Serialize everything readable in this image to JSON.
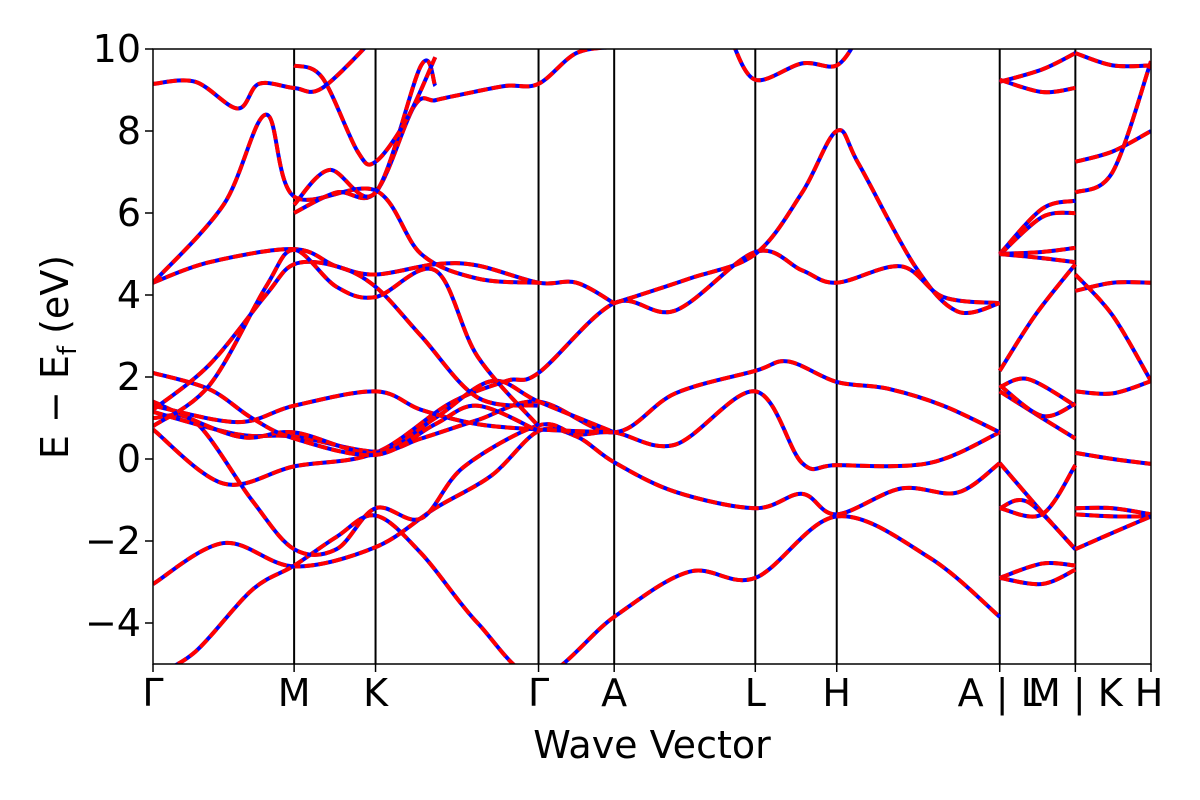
{
  "chart_data": {
    "type": "line",
    "xlabel": "Wave Vector",
    "ylabel": {
      "main": "E − E",
      "sub": "f",
      "unit": " (eV)"
    },
    "ylim": [
      -5,
      10
    ],
    "yticks": [
      -4,
      -2,
      0,
      2,
      4,
      6,
      8,
      10
    ],
    "ytick_labels": [
      "−4",
      "−2",
      "0",
      "2",
      "4",
      "6",
      "8",
      "10"
    ],
    "kpath": [
      {
        "label": "Γ",
        "k": 0.0
      },
      {
        "label": "M",
        "k": 1.0
      },
      {
        "label": "K",
        "k": 1.577
      },
      {
        "label": "Γ",
        "k": 2.732
      },
      {
        "label": "A",
        "k": 3.268
      },
      {
        "label": "L",
        "k": 4.268
      },
      {
        "label": "H",
        "k": 4.845
      },
      {
        "label": "A | L",
        "k": 6.0
      },
      {
        "label": "M | K",
        "k": 6.536
      },
      {
        "label": "H",
        "k": 7.072
      }
    ],
    "xlim": [
      0,
      7.072
    ],
    "grid": false,
    "legend": "none",
    "colors": {
      "spin_up": "#ff0000",
      "spin_down": "#0000ff",
      "kline": "#000000"
    },
    "series": [
      {
        "points": [
          [
            0,
            -3.05
          ],
          [
            0.5,
            -2.05
          ],
          [
            1.0,
            -2.62
          ],
          [
            1.577,
            -2.15
          ],
          [
            2.0,
            -1.2
          ],
          [
            2.4,
            -0.4
          ],
          [
            2.732,
            0.68
          ],
          [
            3.0,
            0.55
          ],
          [
            3.268,
            -0.08
          ],
          [
            3.7,
            -0.8
          ],
          [
            4.268,
            -1.2
          ],
          [
            4.6,
            -0.85
          ],
          [
            4.845,
            -1.35
          ],
          [
            5.3,
            -0.72
          ],
          [
            5.7,
            -0.82
          ],
          [
            6.0,
            -0.1
          ]
        ]
      },
      {
        "points": [
          [
            0,
            -5.3
          ],
          [
            0.3,
            -4.7
          ],
          [
            0.7,
            -3.2
          ],
          [
            1.0,
            -2.6
          ],
          [
            1.3,
            -1.9
          ],
          [
            1.577,
            -1.38
          ],
          [
            1.9,
            -2.3
          ],
          [
            2.3,
            -4.0
          ],
          [
            2.732,
            -5.3
          ],
          [
            3.268,
            -3.85
          ],
          [
            3.8,
            -2.75
          ],
          [
            4.268,
            -2.9
          ],
          [
            4.845,
            -1.4
          ],
          [
            5.5,
            -2.4
          ],
          [
            6.0,
            -3.85
          ]
        ]
      },
      {
        "points": [
          [
            0,
            0.72
          ],
          [
            0.5,
            -0.6
          ],
          [
            1.0,
            -0.18
          ],
          [
            1.577,
            0.15
          ],
          [
            2.1,
            1.35
          ],
          [
            2.5,
            1.9
          ],
          [
            2.732,
            2.1
          ],
          [
            3.268,
            3.8
          ],
          [
            3.7,
            3.62
          ],
          [
            4.268,
            5.05
          ],
          [
            4.6,
            4.6
          ],
          [
            4.845,
            4.3
          ],
          [
            5.3,
            4.7
          ],
          [
            5.6,
            3.95
          ],
          [
            6.0,
            3.8
          ]
        ]
      },
      {
        "points": [
          [
            0,
            1.0
          ],
          [
            0.3,
            0.9
          ],
          [
            0.7,
            -1.0
          ],
          [
            1.0,
            -2.2
          ],
          [
            1.3,
            -2.2
          ],
          [
            1.577,
            -1.2
          ],
          [
            1.9,
            -1.45
          ],
          [
            2.2,
            -0.2
          ],
          [
            2.732,
            0.82
          ],
          [
            3.0,
            0.6
          ],
          [
            3.268,
            0.65
          ],
          [
            3.7,
            0.35
          ],
          [
            4.268,
            1.65
          ],
          [
            4.6,
            -0.1
          ],
          [
            4.845,
            -0.15
          ],
          [
            5.5,
            -0.1
          ],
          [
            6.0,
            0.65
          ]
        ]
      },
      {
        "points": [
          [
            0,
            1.15
          ],
          [
            0.6,
            0.6
          ],
          [
            1.0,
            0.55
          ],
          [
            1.577,
            0.18
          ],
          [
            1.9,
            0.5
          ],
          [
            2.3,
            0.95
          ],
          [
            2.732,
            1.4
          ],
          [
            3.268,
            0.65
          ],
          [
            3.7,
            1.6
          ],
          [
            4.268,
            2.15
          ],
          [
            4.5,
            2.38
          ],
          [
            4.845,
            1.88
          ],
          [
            5.2,
            1.72
          ],
          [
            5.6,
            1.3
          ],
          [
            6.0,
            0.65
          ]
        ]
      },
      {
        "points": [
          [
            0,
            1.4
          ],
          [
            0.6,
            0.55
          ],
          [
            1.0,
            0.65
          ],
          [
            1.577,
            0.15
          ],
          [
            2.0,
            1.0
          ],
          [
            2.4,
            1.9
          ],
          [
            2.732,
            1.4
          ],
          [
            3.268,
            0.65
          ]
        ]
      },
      {
        "points": [
          [
            0,
            1.3
          ],
          [
            0.6,
            0.9
          ],
          [
            1.0,
            1.3
          ],
          [
            1.577,
            1.65
          ],
          [
            1.9,
            1.2
          ],
          [
            2.3,
            0.85
          ],
          [
            2.732,
            0.72
          ],
          [
            3.268,
            0.65
          ]
        ]
      },
      {
        "points": [
          [
            0,
            2.1
          ],
          [
            0.4,
            1.7
          ],
          [
            0.7,
            1.0
          ],
          [
            1.0,
            0.5
          ],
          [
            1.577,
            0.1
          ],
          [
            2.0,
            0.85
          ],
          [
            2.3,
            1.3
          ],
          [
            2.732,
            0.68
          ]
        ]
      },
      {
        "points": [
          [
            0,
            4.3
          ],
          [
            0.4,
            4.8
          ],
          [
            1.0,
            5.12
          ],
          [
            1.3,
            4.7
          ],
          [
            1.577,
            4.5
          ],
          [
            2.0,
            4.75
          ],
          [
            2.3,
            4.72
          ],
          [
            2.732,
            4.3
          ],
          [
            3.0,
            4.3
          ],
          [
            3.268,
            3.8
          ]
        ]
      },
      {
        "points": [
          [
            0,
            4.3
          ],
          [
            0.5,
            6.2
          ],
          [
            0.8,
            8.4
          ],
          [
            1.0,
            6.4
          ],
          [
            1.577,
            6.55
          ],
          [
            1.9,
            5.0
          ],
          [
            2.3,
            4.4
          ],
          [
            2.732,
            4.3
          ]
        ]
      },
      {
        "points": [
          [
            0,
            1.2
          ],
          [
            0.4,
            2.3
          ],
          [
            0.8,
            4.0
          ],
          [
            1.0,
            4.75
          ],
          [
            1.3,
            4.7
          ],
          [
            1.577,
            4.2
          ],
          [
            1.9,
            3.0
          ],
          [
            2.3,
            1.5
          ],
          [
            2.732,
            1.3
          ]
        ]
      },
      {
        "points": [
          [
            0,
            0.8
          ],
          [
            0.4,
            1.8
          ],
          [
            0.8,
            4.2
          ],
          [
            1.0,
            5.1
          ],
          [
            1.3,
            4.2
          ],
          [
            1.577,
            3.95
          ],
          [
            2.0,
            4.6
          ],
          [
            2.3,
            2.5
          ],
          [
            2.732,
            0.8
          ]
        ]
      },
      {
        "points": [
          [
            0,
            9.15
          ],
          [
            0.3,
            9.2
          ],
          [
            0.6,
            8.55
          ],
          [
            0.75,
            9.15
          ],
          [
            1.0,
            9.05
          ],
          [
            1.2,
            9.05
          ],
          [
            1.577,
            10.3
          ]
        ]
      },
      {
        "points": [
          [
            1.0,
            6.0
          ],
          [
            1.3,
            6.5
          ],
          [
            1.577,
            6.5
          ],
          [
            1.85,
            8.6
          ],
          [
            2.0,
            8.75
          ],
          [
            2.2,
            8.9
          ],
          [
            2.5,
            9.1
          ],
          [
            2.732,
            9.15
          ],
          [
            3.0,
            9.9
          ],
          [
            3.268,
            10.05
          ]
        ]
      },
      {
        "points": [
          [
            1.0,
            6.2
          ],
          [
            1.25,
            7.05
          ],
          [
            1.577,
            6.5
          ],
          [
            1.9,
            9.6
          ],
          [
            2.0,
            9.1
          ]
        ]
      },
      {
        "points": [
          [
            1.0,
            9.6
          ],
          [
            1.2,
            9.3
          ],
          [
            1.45,
            7.5
          ],
          [
            1.577,
            7.25
          ],
          [
            1.8,
            8.3
          ],
          [
            2.0,
            9.8
          ]
        ]
      },
      {
        "points": [
          [
            4.1,
            10.2
          ],
          [
            4.268,
            9.25
          ],
          [
            4.6,
            9.65
          ],
          [
            4.845,
            9.6
          ],
          [
            5.0,
            10.3
          ]
        ]
      },
      {
        "points": [
          [
            3.268,
            3.8
          ],
          [
            3.8,
            4.4
          ],
          [
            4.268,
            5.0
          ],
          [
            4.6,
            6.5
          ],
          [
            4.845,
            8.0
          ],
          [
            5.0,
            7.2
          ],
          [
            5.4,
            4.7
          ],
          [
            5.7,
            3.6
          ],
          [
            6.0,
            3.8
          ]
        ]
      },
      {
        "points": [
          [
            6.0,
            9.2
          ],
          [
            6.3,
            9.5
          ],
          [
            6.536,
            9.9
          ]
        ]
      },
      {
        "points": [
          [
            6.0,
            9.25
          ],
          [
            6.3,
            8.95
          ],
          [
            6.536,
            9.05
          ]
        ]
      },
      {
        "points": [
          [
            6.0,
            5.0
          ],
          [
            6.3,
            6.1
          ],
          [
            6.536,
            6.3
          ]
        ]
      },
      {
        "points": [
          [
            6.0,
            4.98
          ],
          [
            6.3,
            5.9
          ],
          [
            6.536,
            6.0
          ]
        ]
      },
      {
        "points": [
          [
            6.0,
            5.0
          ],
          [
            6.3,
            5.05
          ],
          [
            6.536,
            5.15
          ]
        ]
      },
      {
        "points": [
          [
            6.0,
            5.0
          ],
          [
            6.3,
            4.9
          ],
          [
            6.536,
            4.8
          ]
        ]
      },
      {
        "points": [
          [
            6.0,
            2.15
          ],
          [
            6.25,
            3.5
          ],
          [
            6.536,
            4.75
          ]
        ]
      },
      {
        "points": [
          [
            6.0,
            1.75
          ],
          [
            6.2,
            1.95
          ],
          [
            6.536,
            1.3
          ]
        ]
      },
      {
        "points": [
          [
            6.0,
            1.65
          ],
          [
            6.3,
            1.0
          ],
          [
            6.536,
            0.5
          ]
        ]
      },
      {
        "points": [
          [
            6.0,
            1.8
          ],
          [
            6.3,
            1.05
          ],
          [
            6.536,
            1.35
          ]
        ]
      },
      {
        "points": [
          [
            6.0,
            -0.1
          ],
          [
            6.3,
            -1.3
          ],
          [
            6.536,
            -2.2
          ]
        ]
      },
      {
        "points": [
          [
            6.0,
            -1.2
          ],
          [
            6.2,
            -1.05
          ],
          [
            6.536,
            -2.2
          ]
        ]
      },
      {
        "points": [
          [
            6.0,
            -1.2
          ],
          [
            6.3,
            -1.35
          ],
          [
            6.536,
            -0.15
          ]
        ]
      },
      {
        "points": [
          [
            6.0,
            -2.9
          ],
          [
            6.3,
            -2.55
          ],
          [
            6.536,
            -2.6
          ]
        ]
      },
      {
        "points": [
          [
            6.0,
            -2.9
          ],
          [
            6.3,
            -3.05
          ],
          [
            6.536,
            -2.7
          ]
        ]
      },
      {
        "points": [
          [
            6.536,
            7.25
          ],
          [
            6.8,
            7.5
          ],
          [
            7.072,
            8.0
          ]
        ]
      },
      {
        "points": [
          [
            6.536,
            6.5
          ],
          [
            6.8,
            7.0
          ],
          [
            7.072,
            9.7
          ]
        ]
      },
      {
        "points": [
          [
            6.536,
            9.9
          ],
          [
            6.8,
            9.6
          ],
          [
            7.072,
            9.6
          ]
        ]
      },
      {
        "points": [
          [
            6.536,
            4.1
          ],
          [
            6.8,
            4.3
          ],
          [
            7.072,
            4.3
          ]
        ]
      },
      {
        "points": [
          [
            6.536,
            4.5
          ],
          [
            6.8,
            3.5
          ],
          [
            7.072,
            1.9
          ]
        ]
      },
      {
        "points": [
          [
            6.536,
            1.65
          ],
          [
            6.8,
            1.6
          ],
          [
            7.072,
            1.9
          ]
        ]
      },
      {
        "points": [
          [
            6.536,
            0.15
          ],
          [
            6.8,
            0.0
          ],
          [
            7.072,
            -0.12
          ]
        ]
      },
      {
        "points": [
          [
            6.536,
            -1.2
          ],
          [
            6.8,
            -1.2
          ],
          [
            7.072,
            -1.35
          ]
        ]
      },
      {
        "points": [
          [
            6.536,
            -1.35
          ],
          [
            6.8,
            -1.4
          ],
          [
            7.072,
            -1.4
          ]
        ]
      },
      {
        "points": [
          [
            6.536,
            -2.2
          ],
          [
            6.8,
            -1.8
          ],
          [
            7.072,
            -1.4
          ]
        ]
      }
    ]
  }
}
